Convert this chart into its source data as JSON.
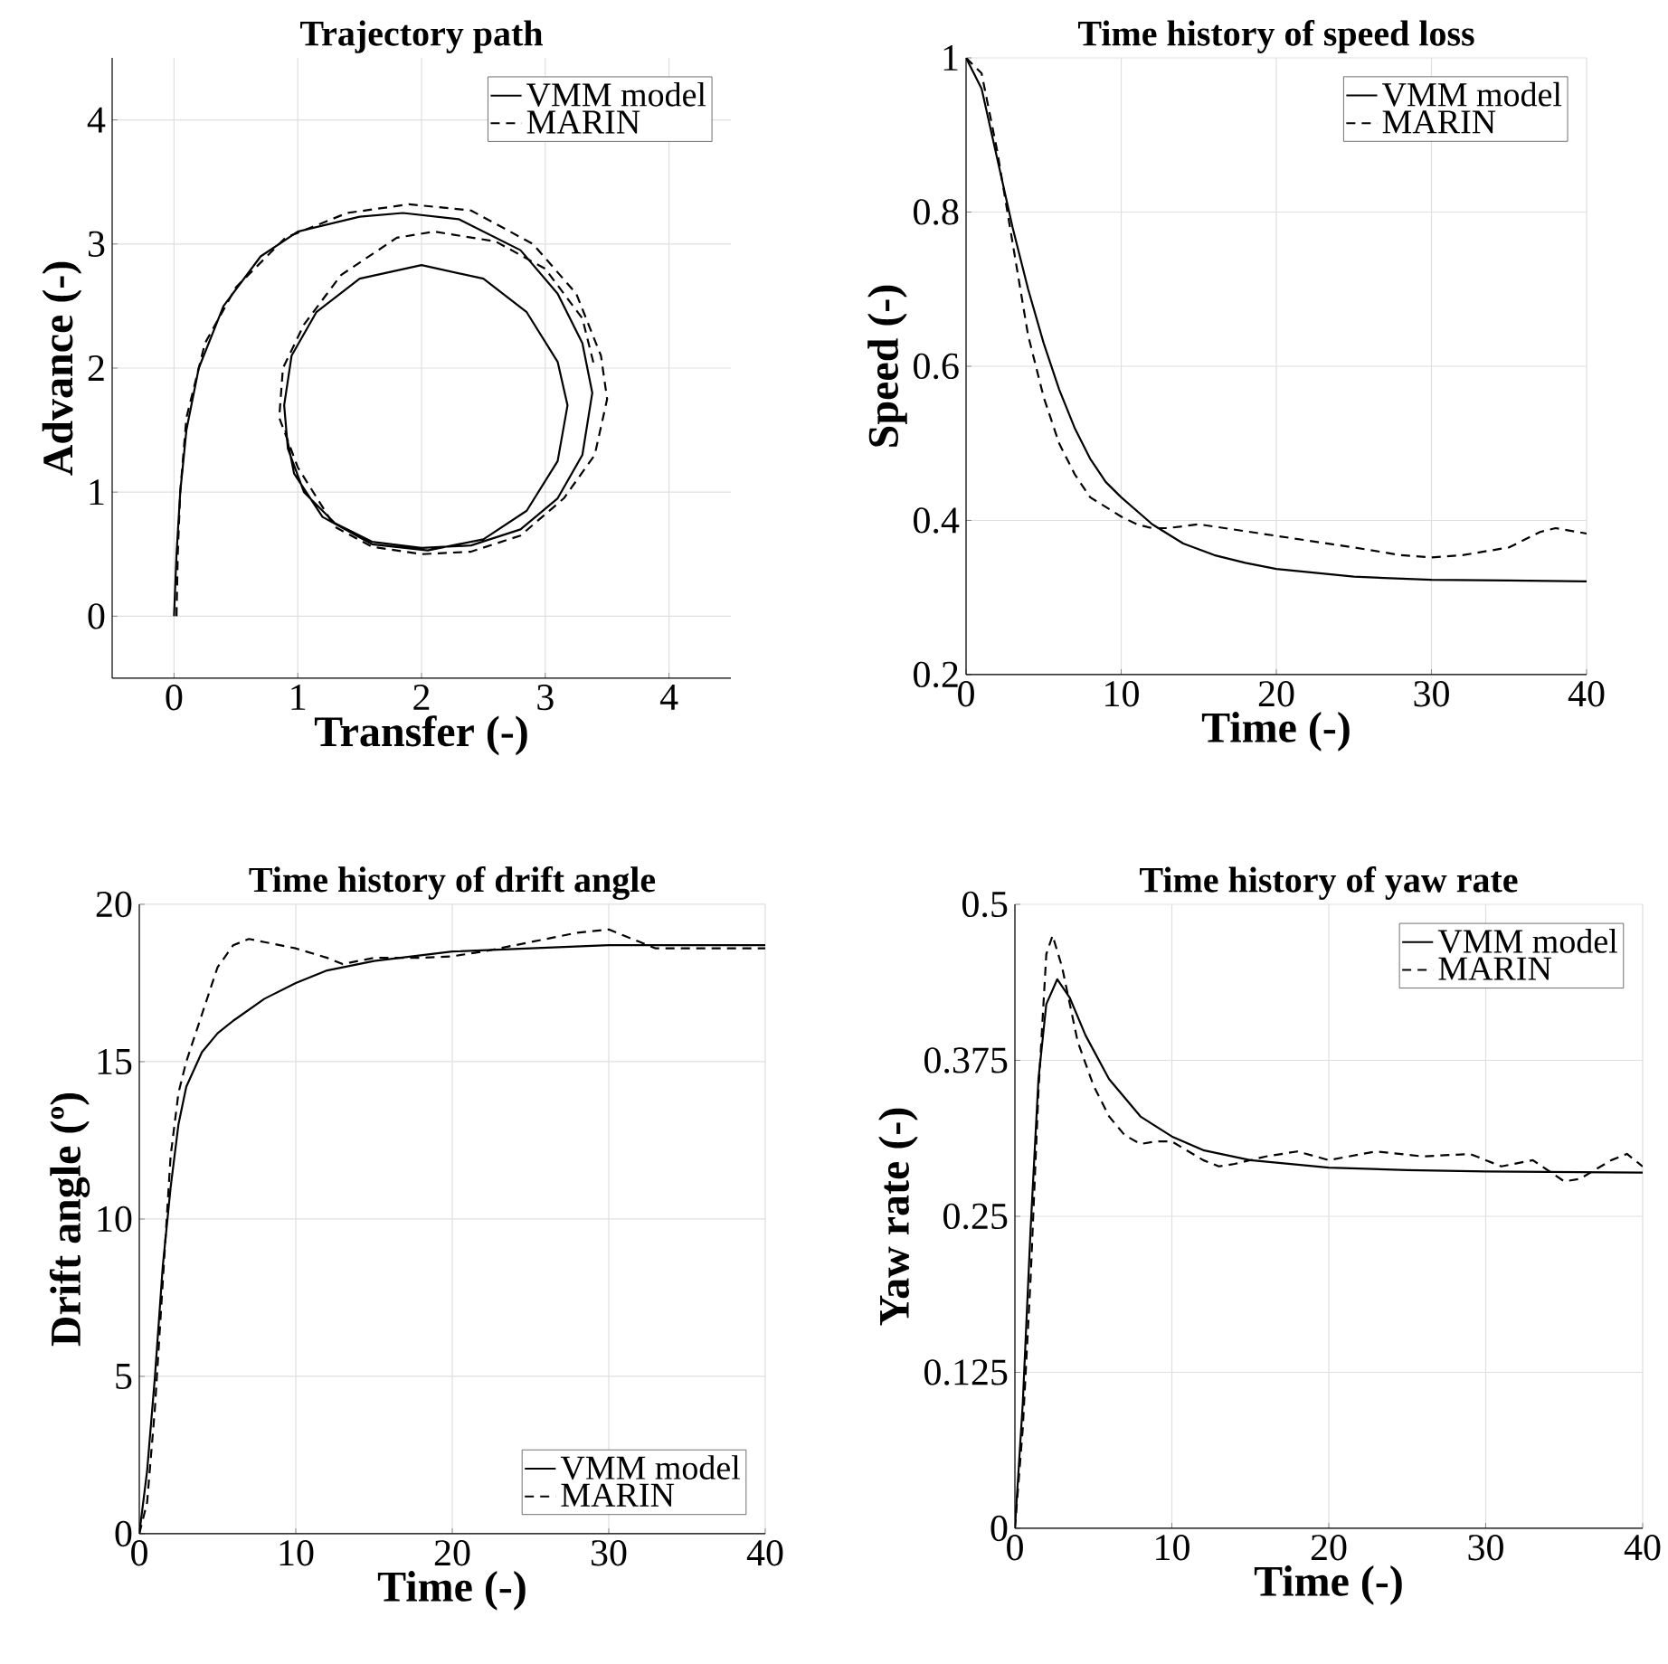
{
  "chart_data": [
    {
      "type": "line",
      "title": "Trajectory path",
      "xlabel": "Transfer (-)",
      "ylabel": "Advance (-)",
      "xlim": [
        -0.5,
        4.5
      ],
      "ylim": [
        -0.5,
        4.5
      ],
      "xticks": [
        0,
        1,
        2,
        3,
        4
      ],
      "yticks": [
        0,
        1,
        2,
        3,
        4
      ],
      "grid": true,
      "legend": "top right",
      "marker": "none",
      "series": [
        {
          "name": "VMM model",
          "color": "#000000",
          "line_style": "solid",
          "x": [
            0,
            0.02,
            0.05,
            0.1,
            0.2,
            0.4,
            0.7,
            1.0,
            1.5,
            1.85,
            2.3,
            2.8,
            3.1,
            3.3,
            3.38,
            3.3,
            3.1,
            2.8,
            2.4,
            2.0,
            1.6,
            1.3,
            1.05,
            0.92,
            0.89,
            0.95,
            1.15,
            1.5,
            2.0,
            2.5,
            2.85,
            3.1,
            3.18,
            3.1,
            2.85,
            2.5,
            2.05,
            1.6,
            1.2,
            0.97,
            0.9
          ],
          "values": [
            0,
            0.5,
            1.0,
            1.5,
            2.0,
            2.5,
            2.9,
            3.1,
            3.22,
            3.25,
            3.2,
            2.95,
            2.6,
            2.2,
            1.8,
            1.3,
            0.95,
            0.7,
            0.57,
            0.55,
            0.6,
            0.75,
            1.0,
            1.35,
            1.7,
            2.1,
            2.45,
            2.72,
            2.83,
            2.72,
            2.45,
            2.05,
            1.7,
            1.25,
            0.85,
            0.62,
            0.53,
            0.58,
            0.8,
            1.15,
            1.5
          ]
        },
        {
          "name": "MARIN",
          "color": "#000000",
          "line_style": "dashed",
          "x": [
            0.02,
            0.03,
            0.05,
            0.1,
            0.25,
            0.5,
            0.9,
            1.4,
            1.9,
            2.4,
            2.9,
            3.25,
            3.45,
            3.5,
            3.4,
            3.15,
            2.8,
            2.4,
            2.0,
            1.6,
            1.3,
            1.0,
            0.85,
            0.88,
            1.05,
            1.35,
            1.8,
            2.1,
            2.6,
            3.0,
            3.3,
            3.4
          ],
          "values": [
            0,
            0.5,
            1.0,
            1.6,
            2.2,
            2.65,
            3.05,
            3.25,
            3.32,
            3.27,
            3.0,
            2.6,
            2.1,
            1.75,
            1.3,
            0.95,
            0.65,
            0.52,
            0.5,
            0.56,
            0.72,
            1.2,
            1.6,
            2.0,
            2.35,
            2.75,
            3.05,
            3.1,
            3.02,
            2.8,
            2.4,
            2.0
          ]
        }
      ]
    },
    {
      "type": "line",
      "title": "Time history of speed loss",
      "xlabel": "Time (-)",
      "ylabel": "Speed (-)",
      "xlim": [
        0,
        40
      ],
      "ylim": [
        0.2,
        1
      ],
      "xticks": [
        0,
        10,
        20,
        30,
        40
      ],
      "yticks": [
        {
          "value": 0.2,
          "label": "0.2"
        },
        {
          "value": 0.4,
          "label": "0.4"
        },
        {
          "value": 0.6,
          "label": "0.6"
        },
        {
          "value": 0.8,
          "label": "0.8"
        },
        1
      ],
      "grid": true,
      "legend": "top right",
      "marker": "none",
      "series": [
        {
          "name": "VMM model",
          "color": "#000000",
          "line_style": "solid",
          "x": [
            0,
            1,
            2,
            3,
            4,
            5,
            6,
            7,
            8,
            9,
            10,
            12,
            14,
            16,
            18,
            20,
            25,
            30,
            35,
            40
          ],
          "values": [
            1,
            0.96,
            0.87,
            0.78,
            0.7,
            0.63,
            0.57,
            0.52,
            0.48,
            0.45,
            0.43,
            0.395,
            0.37,
            0.355,
            0.345,
            0.337,
            0.327,
            0.323,
            0.322,
            0.321
          ]
        },
        {
          "name": "MARIN",
          "color": "#000000",
          "line_style": "dashed",
          "x": [
            0,
            1,
            2,
            3,
            4,
            5,
            6,
            7,
            8,
            10,
            11,
            12,
            13,
            15,
            20,
            25,
            28,
            30,
            32,
            35,
            37,
            38,
            40
          ],
          "values": [
            1,
            0.98,
            0.88,
            0.76,
            0.64,
            0.56,
            0.5,
            0.46,
            0.43,
            0.405,
            0.395,
            0.39,
            0.39,
            0.395,
            0.38,
            0.365,
            0.355,
            0.352,
            0.355,
            0.365,
            0.385,
            0.39,
            0.383
          ]
        }
      ]
    },
    {
      "type": "line",
      "title": "Time history of drift angle",
      "xlabel": "Time (-)",
      "ylabel": "Drift angle (º)",
      "xlim": [
        0,
        40
      ],
      "ylim": [
        0,
        20
      ],
      "xticks": [
        0,
        10,
        20,
        30,
        40
      ],
      "yticks": [
        0,
        5,
        10,
        15,
        20
      ],
      "grid": true,
      "legend": "bottom right",
      "marker": "none",
      "series": [
        {
          "name": "VMM model",
          "color": "#000000",
          "line_style": "solid",
          "x": [
            0,
            0.5,
            1,
            1.5,
            2,
            2.5,
            3,
            4,
            5,
            6,
            8,
            10,
            12,
            15,
            20,
            25,
            30,
            40
          ],
          "values": [
            0,
            2,
            5,
            8.5,
            11,
            13,
            14.2,
            15.3,
            15.9,
            16.3,
            17,
            17.5,
            17.9,
            18.2,
            18.5,
            18.6,
            18.7,
            18.7
          ]
        },
        {
          "name": "MARIN",
          "color": "#000000",
          "line_style": "dashed",
          "x": [
            0,
            0.5,
            1,
            1.5,
            2,
            2.5,
            3,
            4,
            5,
            6,
            7,
            8,
            10,
            12,
            13,
            15,
            18,
            20,
            22,
            25,
            28,
            30,
            31,
            33,
            40
          ],
          "values": [
            0,
            1,
            4,
            8,
            12,
            14,
            15,
            16.5,
            18,
            18.7,
            18.9,
            18.8,
            18.6,
            18.3,
            18.1,
            18.3,
            18.3,
            18.35,
            18.5,
            18.8,
            19.1,
            19.2,
            19.0,
            18.6,
            18.6
          ]
        }
      ]
    },
    {
      "type": "line",
      "title": "Time history of yaw rate",
      "xlabel": "Time (-)",
      "ylabel": "Yaw rate (-)",
      "xlim": [
        0,
        40
      ],
      "ylim": [
        0,
        0.5
      ],
      "xticks": [
        0,
        10,
        20,
        30,
        40
      ],
      "yticks": [
        0,
        {
          "value": 0.125,
          "label": "0.125"
        },
        {
          "value": 0.25,
          "label": "0.25"
        },
        {
          "value": 0.375,
          "label": "0.375"
        },
        {
          "value": 0.5,
          "label": "0.5"
        }
      ],
      "grid": true,
      "legend": "top right",
      "marker": "none",
      "series": [
        {
          "name": "VMM model",
          "color": "#000000",
          "line_style": "solid",
          "x": [
            0,
            0.5,
            1,
            1.5,
            2,
            2.7,
            3.5,
            4.5,
            6,
            8,
            10,
            12,
            15,
            20,
            25,
            30,
            40
          ],
          "values": [
            0,
            0.1,
            0.24,
            0.36,
            0.42,
            0.44,
            0.425,
            0.395,
            0.36,
            0.33,
            0.314,
            0.303,
            0.295,
            0.289,
            0.287,
            0.286,
            0.285
          ]
        },
        {
          "name": "MARIN",
          "color": "#000000",
          "line_style": "dashed",
          "x": [
            0,
            0.5,
            1,
            1.5,
            2,
            2.4,
            3,
            4,
            5,
            6,
            7,
            8,
            9,
            10,
            12,
            13,
            14,
            16,
            18,
            20,
            23,
            26,
            29,
            31,
            33,
            35,
            36,
            38,
            39,
            40
          ],
          "values": [
            0,
            0.08,
            0.2,
            0.35,
            0.46,
            0.475,
            0.45,
            0.39,
            0.355,
            0.33,
            0.315,
            0.308,
            0.31,
            0.31,
            0.295,
            0.29,
            0.292,
            0.298,
            0.302,
            0.295,
            0.302,
            0.298,
            0.3,
            0.29,
            0.295,
            0.278,
            0.28,
            0.295,
            0.3,
            0.29
          ]
        }
      ]
    }
  ]
}
